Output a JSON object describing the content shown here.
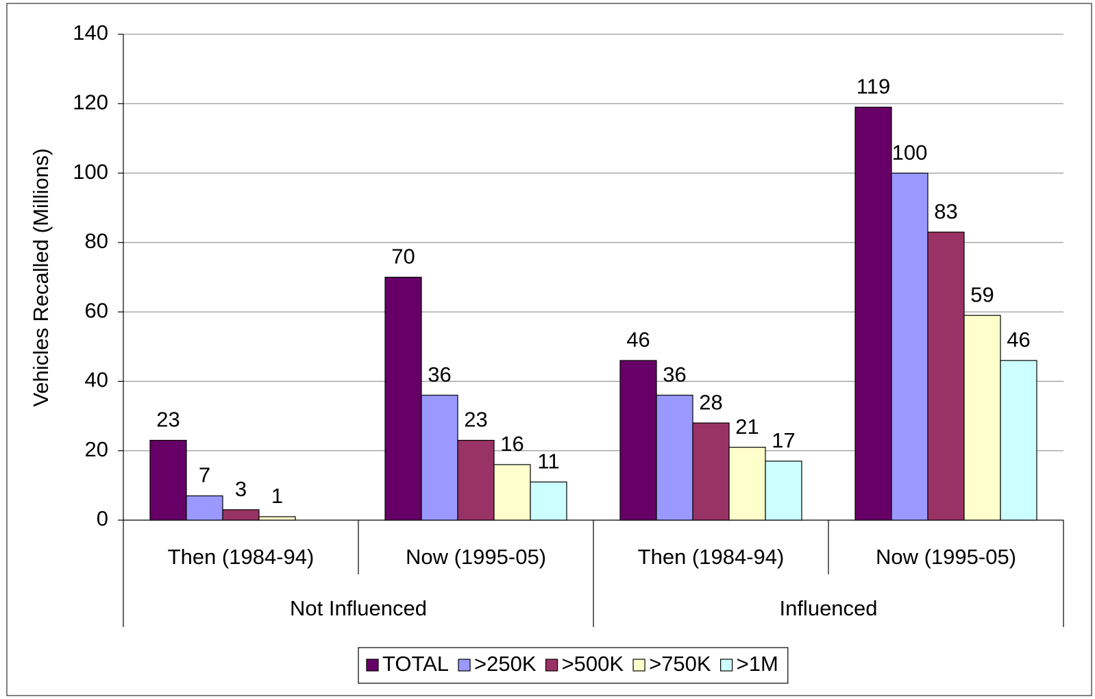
{
  "chart_data": {
    "type": "bar",
    "ylabel": "Vehicles Recalled (Millions)",
    "categories": [
      "Then (1984-94)",
      "Now (1995-05)",
      "Then (1984-94)",
      "Now (1995-05)"
    ],
    "groups": [
      "Not Influenced",
      "Influenced"
    ],
    "series": [
      {
        "name": "TOTAL",
        "color": "#660066",
        "values": [
          23,
          70,
          46,
          119
        ]
      },
      {
        "name": ">250K",
        "color": "#9999ff",
        "values": [
          7,
          36,
          36,
          100
        ]
      },
      {
        "name": ">500K",
        "color": "#993366",
        "values": [
          3,
          23,
          28,
          83
        ]
      },
      {
        "name": ">750K",
        "color": "#ffffcc",
        "values": [
          1,
          16,
          21,
          59
        ]
      },
      {
        "name": ">1M",
        "color": "#ccffff",
        "values": [
          null,
          11,
          17,
          46
        ]
      }
    ],
    "ylim": [
      0,
      140
    ],
    "yticks": [
      0,
      20,
      40,
      60,
      80,
      100,
      120,
      140
    ],
    "grid": true,
    "legend": "bottom"
  }
}
